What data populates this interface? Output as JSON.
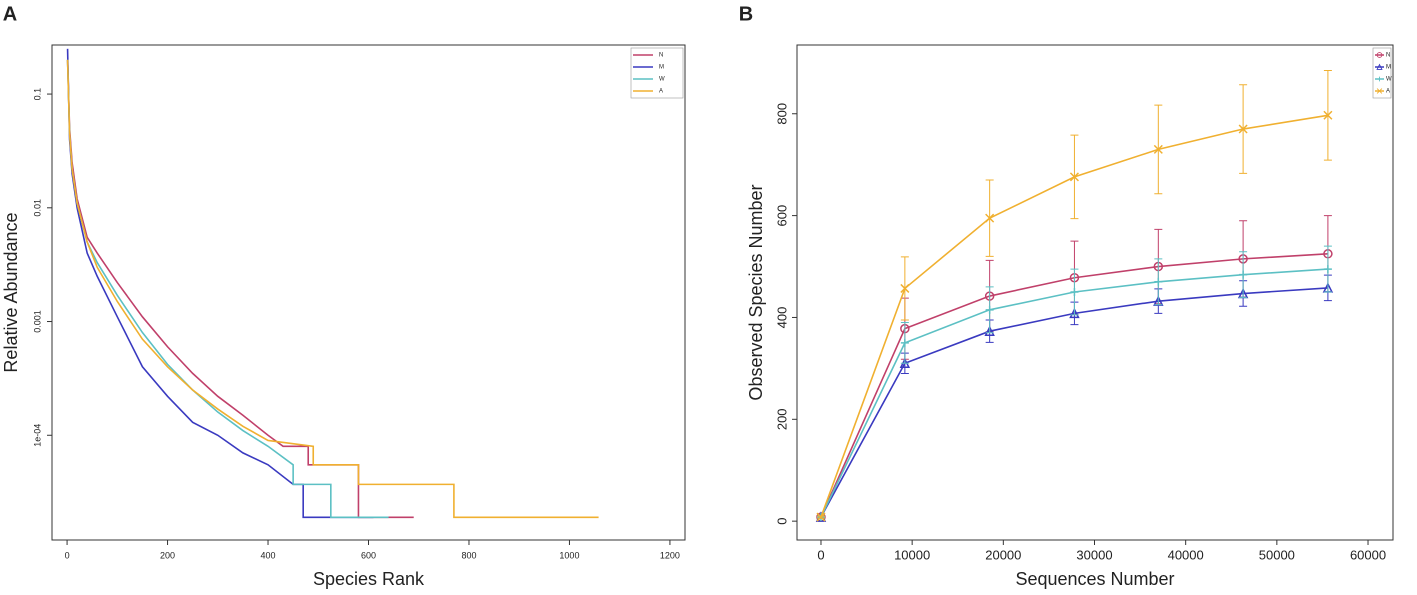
{
  "chart_data": [
    {
      "type": "line",
      "panel_label": "A",
      "x_label": "Species Rank",
      "y_label": "Relative Abundance",
      "log_y": true,
      "legend": "top-right",
      "xlim": [
        -30,
        1230
      ],
      "ylim": [
        1.2e-05,
        0.27
      ],
      "xticks": [
        0,
        200,
        400,
        600,
        800,
        1000,
        1200
      ],
      "yticks": [
        {
          "value": 0.0001,
          "label": "1e-04"
        },
        0.001,
        0.01,
        0.1
      ],
      "series": [
        {
          "name": "N",
          "color": "#c0406a",
          "x": [
            1,
            5,
            10,
            20,
            40,
            60,
            100,
            150,
            200,
            250,
            300,
            350,
            400,
            430,
            480,
            480,
            580,
            580,
            690
          ],
          "values": [
            0.2,
            0.05,
            0.025,
            0.012,
            0.0055,
            0.004,
            0.0022,
            0.0011,
            0.0006,
            0.00035,
            0.00022,
            0.00015,
            0.0001,
            8e-05,
            8e-05,
            5.5e-05,
            5.5e-05,
            1.9e-05,
            1.9e-05
          ]
        },
        {
          "name": "M",
          "color": "#3a3ac0",
          "x": [
            1,
            5,
            10,
            20,
            40,
            60,
            100,
            150,
            200,
            250,
            300,
            350,
            400,
            450,
            470,
            470,
            610
          ],
          "values": [
            0.25,
            0.04,
            0.02,
            0.01,
            0.004,
            0.0025,
            0.0011,
            0.0004,
            0.00022,
            0.00013,
            0.0001,
            7e-05,
            5.5e-05,
            3.7e-05,
            3.7e-05,
            1.9e-05,
            1.9e-05
          ]
        },
        {
          "name": "W",
          "color": "#5cc0c4",
          "x": [
            1,
            5,
            10,
            20,
            40,
            60,
            100,
            150,
            200,
            250,
            300,
            350,
            400,
            450,
            450,
            525,
            525,
            640
          ],
          "values": [
            0.2,
            0.045,
            0.022,
            0.011,
            0.005,
            0.0033,
            0.0017,
            0.0008,
            0.00042,
            0.00025,
            0.00016,
            0.00011,
            8e-05,
            5.5e-05,
            3.7e-05,
            3.7e-05,
            1.9e-05,
            1.9e-05
          ]
        },
        {
          "name": "A",
          "color": "#f0b030",
          "x": [
            1,
            5,
            10,
            20,
            40,
            60,
            100,
            150,
            200,
            250,
            300,
            350,
            400,
            490,
            490,
            580,
            580,
            770,
            770,
            1058
          ],
          "values": [
            0.2,
            0.045,
            0.022,
            0.011,
            0.005,
            0.003,
            0.0015,
            0.0007,
            0.0004,
            0.00025,
            0.00017,
            0.00012,
            9e-05,
            8e-05,
            5.5e-05,
            5.5e-05,
            3.7e-05,
            3.7e-05,
            1.9e-05,
            1.9e-05
          ]
        }
      ]
    },
    {
      "type": "errorline",
      "panel_label": "B",
      "x_label": "Sequences Number",
      "y_label": "Observed Species Number",
      "legend": "top-right",
      "xlim": [
        -2630,
        62740
      ],
      "ylim": [
        -37,
        935
      ],
      "xticks": [
        0,
        10000,
        20000,
        30000,
        40000,
        50000,
        60000
      ],
      "yticks": [
        0,
        200,
        400,
        600,
        800
      ],
      "x": [
        0,
        9200,
        18500,
        27800,
        37000,
        46300,
        55600
      ],
      "series": [
        {
          "name": "N",
          "color": "#c0406a",
          "marker": "circle",
          "values": [
            8,
            378,
            442,
            478,
            500,
            515,
            525
          ],
          "errors": [
            2,
            60,
            70,
            72,
            73,
            75,
            75
          ]
        },
        {
          "name": "M",
          "color": "#3a3ac0",
          "marker": "triangle",
          "values": [
            8,
            310,
            373,
            408,
            432,
            447,
            458
          ],
          "errors": [
            2,
            20,
            22,
            22,
            24,
            25,
            25
          ]
        },
        {
          "name": "W",
          "color": "#5cc0c4",
          "marker": "plus",
          "values": [
            8,
            350,
            415,
            450,
            470,
            484,
            495
          ],
          "errors": [
            2,
            40,
            45,
            45,
            45,
            45,
            45
          ]
        },
        {
          "name": "A",
          "color": "#f0b030",
          "marker": "cross",
          "values": [
            8,
            457,
            595,
            676,
            730,
            770,
            797
          ],
          "errors": [
            2,
            62,
            75,
            82,
            87,
            87,
            88
          ]
        }
      ]
    }
  ]
}
